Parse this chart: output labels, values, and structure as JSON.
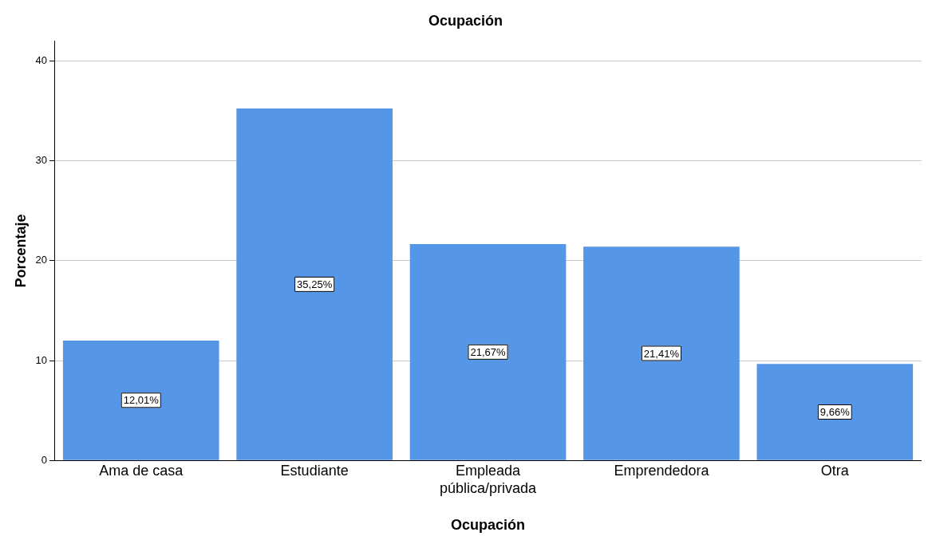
{
  "chart_data": {
    "type": "bar",
    "title": "Ocupación",
    "xlabel": "Ocupación",
    "ylabel": "Porcentaje",
    "categories": [
      "Ama de casa",
      "Estudiante",
      "Empleada pública/privada",
      "Emprendedora",
      "Otra"
    ],
    "values": [
      12.01,
      35.25,
      21.67,
      21.41,
      9.66
    ],
    "value_labels": [
      "12,01%",
      "35,25%",
      "21,67%",
      "21,41%",
      "9,66%"
    ],
    "color": "#5596e6",
    "ylim": [
      0,
      42
    ],
    "yticks": [
      0,
      10,
      20,
      30,
      40
    ],
    "grid": "y",
    "legend": false
  }
}
